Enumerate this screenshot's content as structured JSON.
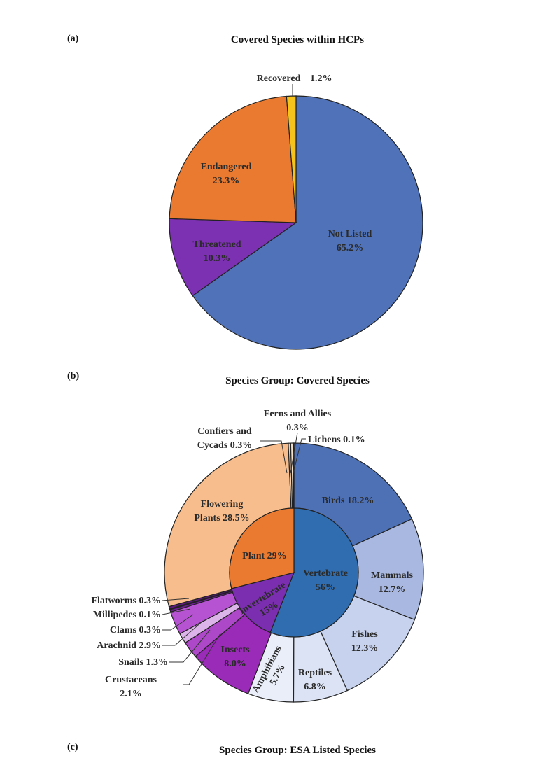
{
  "figure": {
    "panel_a": "(a)",
    "panel_b": "(b)",
    "panel_c": "(c)",
    "title_a": "Covered Species within HCPs",
    "title_b": "Species Group: Covered Species",
    "title_c": "Species Group: ESA Listed Species"
  },
  "chart_data": [
    {
      "type": "pie",
      "title": "Covered Species within HCPs",
      "slices": [
        {
          "name": "Not Listed",
          "value": 65.2,
          "label": "Not Listed",
          "pct": "65.2%",
          "color": "#4f72b8"
        },
        {
          "name": "Threatened",
          "value": 10.3,
          "label": "Threatened",
          "pct": "10.3%",
          "color": "#7c31b2"
        },
        {
          "name": "Endangered",
          "value": 23.3,
          "label": "Endangered",
          "pct": "23.3%",
          "color": "#ea7a30"
        },
        {
          "name": "Recovered",
          "value": 1.2,
          "label": "Recovered",
          "pct": "1.2%",
          "color": "#f5c31c"
        }
      ]
    },
    {
      "type": "pie",
      "title": "Species Group: Covered Species",
      "inner": [
        {
          "name": "Vertebrate",
          "value": 56,
          "label": "Vertebrate",
          "pct": "56%",
          "color": "#2f6db0"
        },
        {
          "name": "Invertebrate",
          "value": 15,
          "label": "Invertebrate",
          "pct": "15%",
          "color": "#7b2fb0"
        },
        {
          "name": "Plant",
          "value": 29,
          "label": "Plant 29%",
          "pct": "",
          "color": "#ea7a30"
        }
      ],
      "outer": [
        {
          "name": "Birds",
          "value": 18.2,
          "label": "Birds 18.2%",
          "color": "#4e71b6"
        },
        {
          "name": "Mammals",
          "value": 12.7,
          "label": "Mammals",
          "pct": "12.7%",
          "color": "#a8b8e0"
        },
        {
          "name": "Fishes",
          "value": 12.3,
          "label": "Fishes",
          "pct": "12.3%",
          "color": "#c6d2ee"
        },
        {
          "name": "Reptiles",
          "value": 6.8,
          "label": "Reptiles",
          "pct": "6.8%",
          "color": "#dbe3f5"
        },
        {
          "name": "Amphibians",
          "value": 5.7,
          "label": "Amphibians",
          "pct": "5.7%",
          "color": "#e9eef9"
        },
        {
          "name": "Insects",
          "value": 8.0,
          "label": "Insects",
          "pct": "8.0%",
          "color": "#9a2ab8"
        },
        {
          "name": "Crustaceans",
          "value": 2.1,
          "label": "Crustaceans",
          "pct": "2.1%",
          "color": "#ad49c9"
        },
        {
          "name": "Snails",
          "value": 1.3,
          "label": "Snails 1.3%",
          "color": "#dcb4ea"
        },
        {
          "name": "Arachnid",
          "value": 2.9,
          "label": "Arachnid 2.9%",
          "color": "#b653d2"
        },
        {
          "name": "Clams",
          "value": 0.3,
          "label": "Clams 0.3%",
          "color": "#6a1f8e"
        },
        {
          "name": "Millipedes",
          "value": 0.1,
          "label": "Millipedes 0.1%",
          "color": "#c27ad8"
        },
        {
          "name": "Flatworms",
          "value": 0.3,
          "label": "Flatworms 0.3%",
          "color": "#5a1a78"
        },
        {
          "name": "Flowering Plants",
          "value": 28.5,
          "label": "Flowering",
          "pct": "Plants 28.5%",
          "color": "#f8bd8c"
        },
        {
          "name": "Conifers and Cycads",
          "value": 0.3,
          "label": "Confiers and",
          "pct": "Cycads 0.3%",
          "color": "#f6d0ad"
        },
        {
          "name": "Ferns and Allies",
          "value": 0.3,
          "label": "Ferns and Allies",
          "pct": "0.3%",
          "color": "#f3e1cc"
        },
        {
          "name": "Lichens",
          "value": 0.1,
          "label": "Lichens 0.1%",
          "color": "#efe8dc"
        }
      ]
    }
  ]
}
